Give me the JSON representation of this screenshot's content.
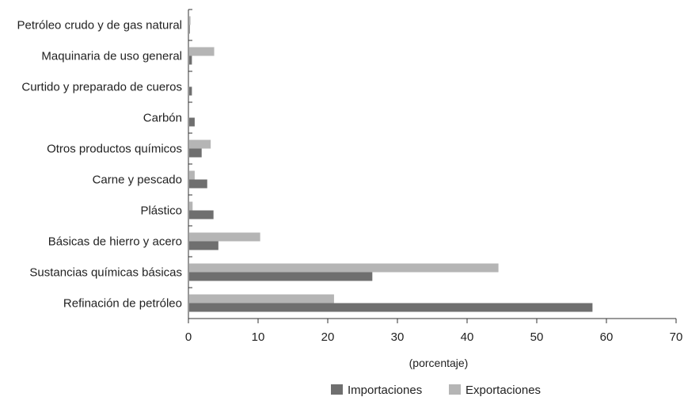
{
  "chart_data": {
    "type": "bar",
    "orientation": "horizontal",
    "categories": [
      "Petróleo crudo y de gas natural",
      "Maquinaria de uso general",
      "Curtido y preparado de cueros",
      "Carbón",
      "Otros productos químicos",
      "Carne y pescado",
      "Plástico",
      "Básicas de hierro y acero",
      "Sustancias químicas básicas",
      "Refinación de petróleo"
    ],
    "series": [
      {
        "name": "Importaciones",
        "color": "#6f6f6f",
        "values": [
          0.2,
          0.5,
          0.5,
          0.9,
          1.9,
          2.7,
          3.6,
          4.3,
          26.4,
          58
        ]
      },
      {
        "name": "Exportaciones",
        "color": "#b5b5b5",
        "values": [
          0.3,
          3.7,
          0,
          0,
          3.2,
          0.9,
          0.6,
          10.3,
          44.5,
          20.9
        ]
      }
    ],
    "xlabel": "(porcentaje)",
    "ylabel": "",
    "xlim": [
      0,
      70
    ],
    "xticks": [
      0,
      10,
      20,
      30,
      40,
      50,
      60,
      70
    ],
    "grid": false,
    "legend_position": "bottom-center"
  }
}
